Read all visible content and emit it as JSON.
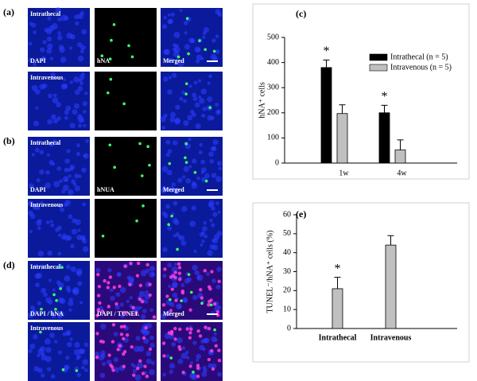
{
  "panels": [
    {
      "label": "(a)",
      "rows": [
        {
          "group": "Intrathecal",
          "channels": [
            "DAPI",
            "hNA",
            "Merged"
          ]
        },
        {
          "group": "Intravenous"
        }
      ]
    },
    {
      "label": "(b)",
      "rows": [
        {
          "group": "Intrathecal",
          "channels": [
            "DAPI",
            "hNUA",
            "Merged"
          ]
        },
        {
          "group": "Intravenous"
        }
      ]
    },
    {
      "label": "(d)",
      "rows": [
        {
          "group": "Intrathecal",
          "channels": [
            "DAPI / hNA",
            "DAPI / TUNEL",
            "Merged"
          ]
        },
        {
          "group": "Intravenous"
        }
      ]
    }
  ],
  "chart_data": [
    {
      "type": "bar",
      "label": "(c)",
      "ylabel": "hNA⁺ cells",
      "categories": [
        "1w",
        "4w"
      ],
      "ylim": [
        0,
        500
      ],
      "yticks": [
        0,
        100,
        200,
        300,
        400,
        500
      ],
      "series": [
        {
          "name": "Intrathecal (n = 5)",
          "color": "#000000",
          "values": [
            380,
            200
          ],
          "errors": [
            30,
            30
          ]
        },
        {
          "name": "Intravenous (n = 5)",
          "color": "#c0c0c0",
          "values": [
            197,
            52
          ],
          "errors": [
            35,
            40
          ]
        }
      ],
      "annotations": [
        "*",
        "*"
      ]
    },
    {
      "type": "bar",
      "label": "(e)",
      "ylabel": "TUNEL⁻/hNA⁺ cells (%)",
      "categories": [
        "Intrathecal",
        "Intravenous"
      ],
      "ylim": [
        0,
        60
      ],
      "yticks": [
        0,
        10,
        20,
        30,
        40,
        50,
        60
      ],
      "series": [
        {
          "color": "#c0c0c0",
          "values": [
            21,
            44
          ],
          "errors": [
            6,
            5
          ]
        }
      ],
      "annotations": [
        "*"
      ]
    }
  ]
}
